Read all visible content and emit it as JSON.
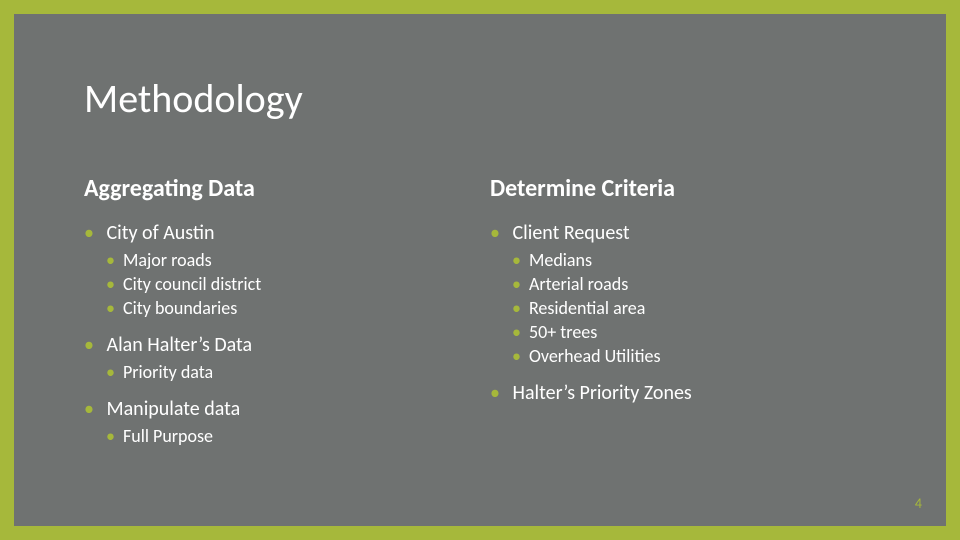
{
  "colors": {
    "outer_border": "#a6b83b",
    "slide_background": "#6f7271",
    "text": "#ffffff",
    "bullet": "#a6b83b",
    "pagenum": "#a6b83b"
  },
  "typography": {
    "title_size_pt": 40,
    "heading_size_pt": 24,
    "l1_size_pt": 20,
    "l2_size_pt": 18,
    "pagenum_size_pt": 14,
    "heading_weight": 600
  },
  "title": "Methodology",
  "page_number": "4",
  "left": {
    "heading": "Aggregating Data",
    "items": [
      {
        "label": "City of Austin",
        "sub": [
          "Major roads",
          "City council district",
          "City boundaries"
        ]
      },
      {
        "label": "Alan Halter’s Data",
        "sub": [
          "Priority data"
        ]
      },
      {
        "label": "Manipulate data",
        "sub": [
          "Full Purpose"
        ]
      }
    ]
  },
  "right": {
    "heading": "Determine Criteria",
    "items": [
      {
        "label": "Client Request",
        "sub": [
          "Medians",
          "Arterial roads",
          "Residential area",
          "50+ trees",
          "Overhead Utilities"
        ]
      },
      {
        "label": "Halter’s Priority Zones",
        "sub": []
      }
    ]
  }
}
